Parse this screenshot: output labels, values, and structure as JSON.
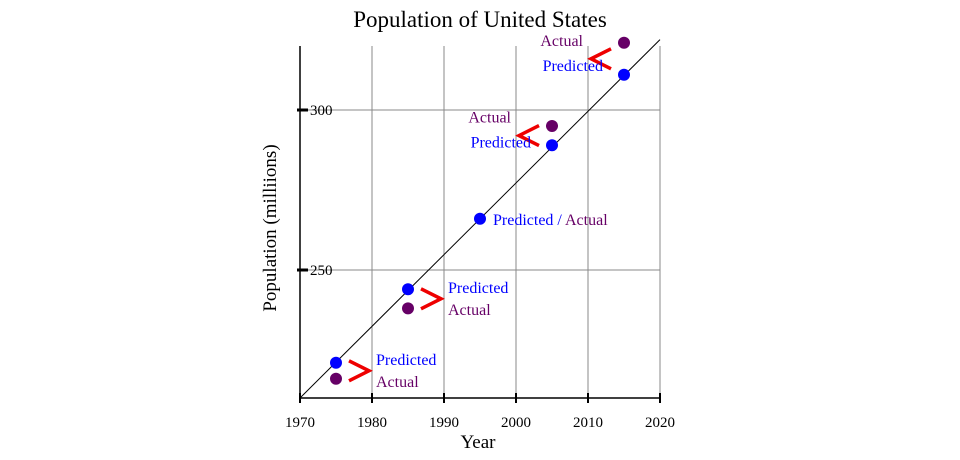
{
  "chart_data": {
    "type": "scatter",
    "title": "Population of United States",
    "xlabel": "Year",
    "ylabel": "Population (milliions)",
    "xlim": [
      1970,
      2020
    ],
    "ylim": [
      210,
      320
    ],
    "x_ticks": [
      1970,
      1980,
      1990,
      2000,
      2010,
      2020
    ],
    "x_tick_labels": [
      "1970",
      "1980",
      "1990",
      "2000",
      "2010",
      "2020"
    ],
    "y_ticks": [
      250,
      300
    ],
    "y_tick_labels": [
      "250",
      "300"
    ],
    "grid": true,
    "trend_line": {
      "x": [
        1970,
        2020
      ],
      "y": [
        210,
        322
      ]
    },
    "series": [
      {
        "name": "Predicted",
        "color": "#0000ff",
        "points": [
          {
            "x": 1975,
            "y": 221
          },
          {
            "x": 1985,
            "y": 244
          },
          {
            "x": 1995,
            "y": 266
          },
          {
            "x": 2005,
            "y": 289
          },
          {
            "x": 2015,
            "y": 311
          }
        ]
      },
      {
        "name": "Actual",
        "color": "#660066",
        "points": [
          {
            "x": 1975,
            "y": 216
          },
          {
            "x": 1985,
            "y": 238
          },
          {
            "x": 2005,
            "y": 295
          },
          {
            "x": 2015,
            "y": 321
          }
        ]
      }
    ],
    "annotations": [
      {
        "year": 1975,
        "symbol": ">",
        "top_text": "Predicted",
        "top_color": "#0000ff",
        "bottom_text": "Actual",
        "bottom_color": "#660066"
      },
      {
        "year": 1985,
        "symbol": ">",
        "top_text": "Predicted",
        "top_color": "#0000ff",
        "bottom_text": "Actual",
        "bottom_color": "#660066"
      },
      {
        "year": 1995,
        "predicted_text": "Predicted",
        "separator": "/",
        "actual_text": "Actual"
      },
      {
        "year": 2005,
        "symbol": "<",
        "top_text": "Actual",
        "top_color": "#660066",
        "bottom_text": "Predicted",
        "bottom_color": "#0000ff"
      },
      {
        "year": 2015,
        "symbol": "<",
        "top_text": "Actual",
        "top_color": "#660066",
        "bottom_text": "Predicted",
        "bottom_color": "#0000ff"
      }
    ],
    "symbol_color": "#ee0000"
  }
}
